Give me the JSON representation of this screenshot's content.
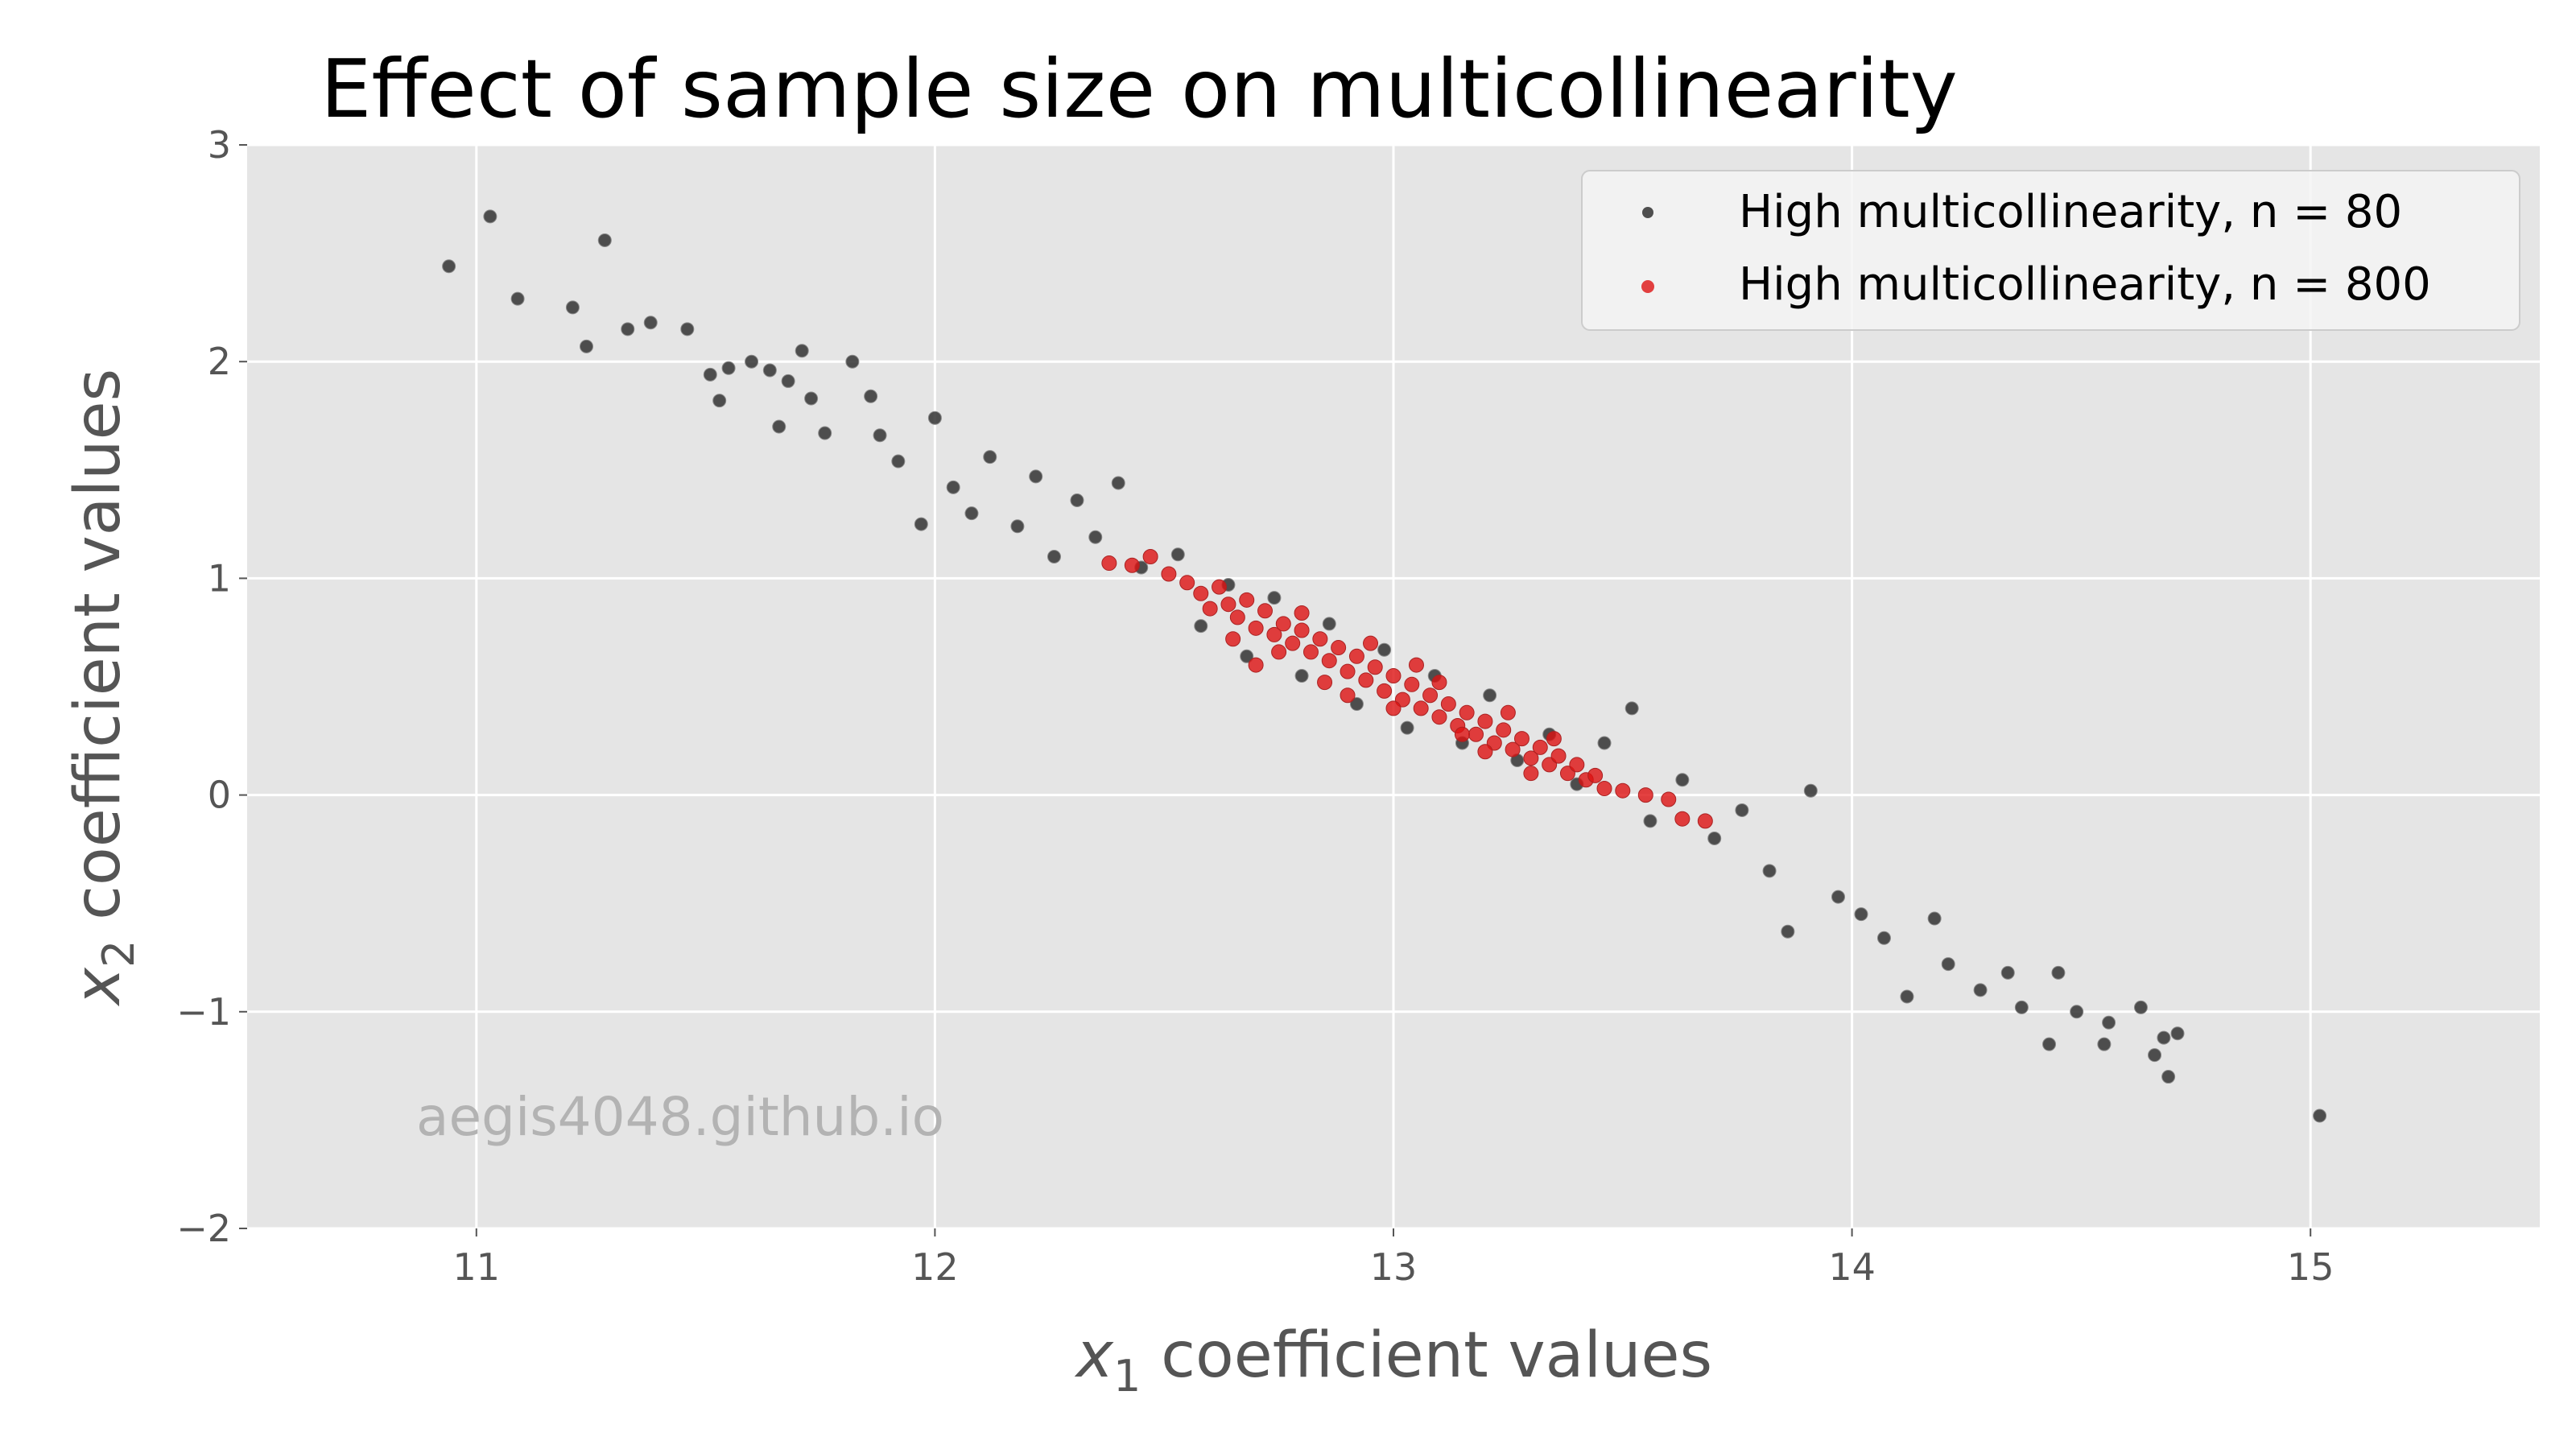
{
  "chart_data": {
    "type": "scatter",
    "title": "Effect of sample size on multicollinearity",
    "xlabel_symbol": "x",
    "xlabel_sub": "1",
    "xlabel_text": " coefficient values",
    "ylabel_symbol": "x",
    "ylabel_sub": "2",
    "ylabel_text": " coefficient values",
    "xlim": [
      10.5,
      15.5
    ],
    "ylim": [
      -2,
      3
    ],
    "xticks": [
      11,
      12,
      13,
      14,
      15
    ],
    "yticks": [
      -2,
      -1,
      0,
      1,
      2,
      3
    ],
    "xtick_labels": [
      "11",
      "12",
      "13",
      "14",
      "15"
    ],
    "ytick_labels": [
      "−2",
      "−1",
      "0",
      "1",
      "2",
      "3"
    ],
    "grid": true,
    "legend_position": "top-right",
    "watermark": "aegis4048.github.io",
    "series": [
      {
        "name": "High multicollinearity, n = 80",
        "color": "#333333",
        "points": [
          [
            10.94,
            2.44
          ],
          [
            11.03,
            2.67
          ],
          [
            11.09,
            2.29
          ],
          [
            11.21,
            2.25
          ],
          [
            11.24,
            2.07
          ],
          [
            11.28,
            2.56
          ],
          [
            11.33,
            2.15
          ],
          [
            11.38,
            2.18
          ],
          [
            11.46,
            2.15
          ],
          [
            11.51,
            1.94
          ],
          [
            11.55,
            1.97
          ],
          [
            11.53,
            1.82
          ],
          [
            11.6,
            2.0
          ],
          [
            11.64,
            1.96
          ],
          [
            11.68,
            1.91
          ],
          [
            11.71,
            2.05
          ],
          [
            11.66,
            1.7
          ],
          [
            11.73,
            1.83
          ],
          [
            11.76,
            1.67
          ],
          [
            11.82,
            2.0
          ],
          [
            11.86,
            1.84
          ],
          [
            11.88,
            1.66
          ],
          [
            11.92,
            1.54
          ],
          [
            11.97,
            1.25
          ],
          [
            12.0,
            1.74
          ],
          [
            12.04,
            1.42
          ],
          [
            12.08,
            1.3
          ],
          [
            12.12,
            1.56
          ],
          [
            12.18,
            1.24
          ],
          [
            12.22,
            1.47
          ],
          [
            12.26,
            1.1
          ],
          [
            12.31,
            1.36
          ],
          [
            12.35,
            1.19
          ],
          [
            12.4,
            1.44
          ],
          [
            12.45,
            1.05
          ],
          [
            12.53,
            1.11
          ],
          [
            12.58,
            0.78
          ],
          [
            12.64,
            0.97
          ],
          [
            12.68,
            0.64
          ],
          [
            12.74,
            0.91
          ],
          [
            12.8,
            0.55
          ],
          [
            12.86,
            0.79
          ],
          [
            12.92,
            0.42
          ],
          [
            12.98,
            0.67
          ],
          [
            13.03,
            0.31
          ],
          [
            13.09,
            0.55
          ],
          [
            13.15,
            0.24
          ],
          [
            13.21,
            0.46
          ],
          [
            13.27,
            0.16
          ],
          [
            13.34,
            0.28
          ],
          [
            13.4,
            0.05
          ],
          [
            13.46,
            0.24
          ],
          [
            13.52,
            0.4
          ],
          [
            13.56,
            -0.12
          ],
          [
            13.63,
            0.07
          ],
          [
            13.7,
            -0.2
          ],
          [
            13.76,
            -0.07
          ],
          [
            13.82,
            -0.35
          ],
          [
            13.86,
            -0.63
          ],
          [
            13.91,
            0.02
          ],
          [
            13.97,
            -0.47
          ],
          [
            14.02,
            -0.55
          ],
          [
            14.07,
            -0.66
          ],
          [
            14.12,
            -0.93
          ],
          [
            14.18,
            -0.57
          ],
          [
            14.21,
            -0.78
          ],
          [
            14.28,
            -0.9
          ],
          [
            14.34,
            -0.82
          ],
          [
            14.37,
            -0.98
          ],
          [
            14.45,
            -0.82
          ],
          [
            14.43,
            -1.15
          ],
          [
            14.49,
            -1.0
          ],
          [
            14.55,
            -1.15
          ],
          [
            14.56,
            -1.05
          ],
          [
            14.63,
            -0.98
          ],
          [
            14.66,
            -1.2
          ],
          [
            14.69,
            -1.3
          ],
          [
            14.71,
            -1.1
          ],
          [
            14.68,
            -1.12
          ],
          [
            15.02,
            -1.48
          ]
        ]
      },
      {
        "name": "High multicollinearity, n = 800",
        "color": "#dd1111",
        "points": [
          [
            12.38,
            1.07
          ],
          [
            12.43,
            1.06
          ],
          [
            12.47,
            1.1
          ],
          [
            12.51,
            1.02
          ],
          [
            12.55,
            0.98
          ],
          [
            12.58,
            0.93
          ],
          [
            12.6,
            0.86
          ],
          [
            12.62,
            0.96
          ],
          [
            12.64,
            0.88
          ],
          [
            12.66,
            0.82
          ],
          [
            12.68,
            0.9
          ],
          [
            12.7,
            0.77
          ],
          [
            12.72,
            0.85
          ],
          [
            12.74,
            0.74
          ],
          [
            12.76,
            0.79
          ],
          [
            12.78,
            0.7
          ],
          [
            12.8,
            0.76
          ],
          [
            12.82,
            0.66
          ],
          [
            12.84,
            0.72
          ],
          [
            12.86,
            0.62
          ],
          [
            12.88,
            0.68
          ],
          [
            12.9,
            0.57
          ],
          [
            12.92,
            0.64
          ],
          [
            12.94,
            0.53
          ],
          [
            12.96,
            0.59
          ],
          [
            12.98,
            0.48
          ],
          [
            13.0,
            0.55
          ],
          [
            13.02,
            0.44
          ],
          [
            13.04,
            0.51
          ],
          [
            13.06,
            0.4
          ],
          [
            13.08,
            0.46
          ],
          [
            13.1,
            0.36
          ],
          [
            13.12,
            0.42
          ],
          [
            13.14,
            0.32
          ],
          [
            13.16,
            0.38
          ],
          [
            13.18,
            0.28
          ],
          [
            13.2,
            0.34
          ],
          [
            13.22,
            0.24
          ],
          [
            13.24,
            0.3
          ],
          [
            13.26,
            0.21
          ],
          [
            13.28,
            0.26
          ],
          [
            13.3,
            0.17
          ],
          [
            13.32,
            0.22
          ],
          [
            13.34,
            0.14
          ],
          [
            13.36,
            0.18
          ],
          [
            13.38,
            0.1
          ],
          [
            13.4,
            0.14
          ],
          [
            13.42,
            0.07
          ],
          [
            13.44,
            0.09
          ],
          [
            13.46,
            0.03
          ],
          [
            13.5,
            0.02
          ],
          [
            13.55,
            0.0
          ],
          [
            13.6,
            -0.02
          ],
          [
            13.63,
            -0.11
          ],
          [
            13.68,
            -0.12
          ],
          [
            12.7,
            0.6
          ],
          [
            12.85,
            0.52
          ],
          [
            13.0,
            0.4
          ],
          [
            13.1,
            0.52
          ],
          [
            12.8,
            0.84
          ],
          [
            12.95,
            0.7
          ],
          [
            13.2,
            0.2
          ],
          [
            13.25,
            0.38
          ],
          [
            12.65,
            0.72
          ],
          [
            13.35,
            0.26
          ],
          [
            13.05,
            0.6
          ],
          [
            12.75,
            0.66
          ],
          [
            13.15,
            0.28
          ],
          [
            12.9,
            0.46
          ],
          [
            13.3,
            0.1
          ]
        ]
      }
    ]
  }
}
